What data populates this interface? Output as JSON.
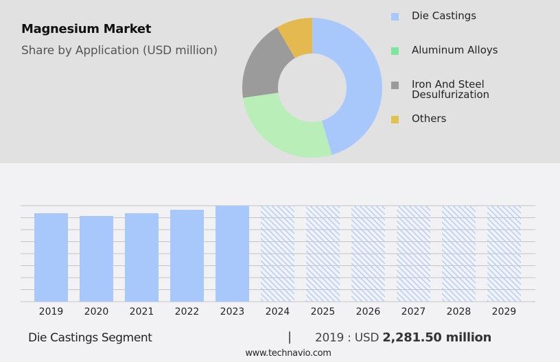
{
  "header": {
    "title": "Magnesium Market",
    "subtitle": "Share by Application (USD million)"
  },
  "legend": [
    {
      "label": "Die Castings",
      "color": "#a8c8fc"
    },
    {
      "label": "Aluminum Alloys",
      "color": "#7ee69a"
    },
    {
      "label": "Iron And Steel\nDesulfurization",
      "color": "#9b9b9b"
    },
    {
      "label": "Others",
      "color": "#e0c24e"
    }
  ],
  "footer": {
    "segment": "Die Castings Segment",
    "separator": "|",
    "value_prefix": "2019 : USD ",
    "value": "2,281.50 million",
    "site": "www.technavio.com"
  },
  "chart_data": [
    {
      "type": "pie",
      "title": "Magnesium Market",
      "subtitle": "Share by Application (USD million)",
      "donut": true,
      "categories": [
        "Die Castings",
        "Aluminum Alloys",
        "Iron And Steel Desulfurization",
        "Others"
      ],
      "values": [
        45.5,
        27.2,
        18.9,
        8.4
      ],
      "colors": [
        "#a8c8fc",
        "#b9eeb9",
        "#9b9b9b",
        "#e4b94f"
      ],
      "legend_position": "right"
    },
    {
      "type": "bar",
      "title": "Die Castings Segment",
      "categories": [
        "2019",
        "2020",
        "2021",
        "2022",
        "2023",
        "2024",
        "2025",
        "2026",
        "2027",
        "2028",
        "2029"
      ],
      "values": [
        2281.5,
        2211,
        2281,
        2370,
        2476,
        null,
        null,
        null,
        null,
        null,
        null
      ],
      "forecast_years": [
        "2024",
        "2025",
        "2026",
        "2027",
        "2028",
        "2029"
      ],
      "forecast_style": "hatched",
      "annotation": "2019 : USD 2,281.50 million",
      "xlabel": "",
      "ylabel": "",
      "grid": true,
      "ylim": [
        0,
        2476
      ],
      "bar_color": "#a8c8fc"
    }
  ]
}
